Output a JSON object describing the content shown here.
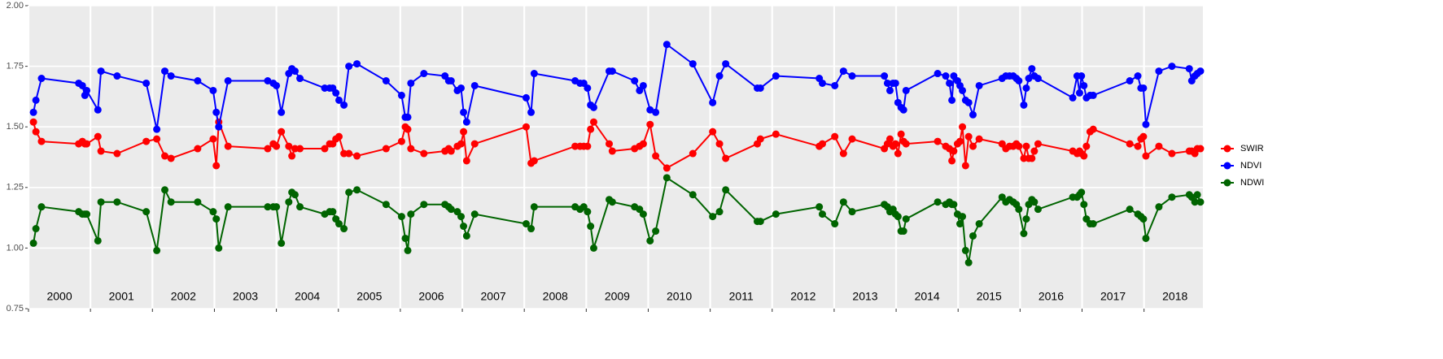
{
  "chart_data": {
    "type": "line",
    "x": [
      2000.08,
      2000.12,
      2000.21,
      2000.81,
      2000.87,
      2000.91,
      2000.94,
      2001.12,
      2001.17,
      2001.43,
      2001.9,
      2002.07,
      2002.2,
      2002.3,
      2002.73,
      2002.98,
      2003.03,
      2003.07,
      2003.22,
      2003.86,
      2003.95,
      2004.0,
      2004.08,
      2004.2,
      2004.25,
      2004.3,
      2004.38,
      2004.78,
      2004.86,
      2004.91,
      2004.96,
      2005.01,
      2005.09,
      2005.17,
      2005.3,
      2005.77,
      2006.02,
      2006.08,
      2006.12,
      2006.17,
      2006.38,
      2006.72,
      2006.78,
      2006.82,
      2006.92,
      2006.98,
      2007.02,
      2007.07,
      2007.2,
      2008.03,
      2008.11,
      2008.16,
      2008.82,
      2008.9,
      2008.96,
      2009.02,
      2009.07,
      2009.12,
      2009.37,
      2009.42,
      2009.78,
      2009.86,
      2009.92,
      2010.03,
      2010.12,
      2010.3,
      2010.72,
      2011.04,
      2011.15,
      2011.25,
      2011.76,
      2011.81,
      2012.06,
      2012.76,
      2012.81,
      2013.01,
      2013.15,
      2013.29,
      2013.81,
      2013.86,
      2013.9,
      2013.95,
      2013.99,
      2014.03,
      2014.08,
      2014.12,
      2014.16,
      2014.67,
      2014.8,
      2014.86,
      2014.9,
      2014.93,
      2014.99,
      2015.03,
      2015.07,
      2015.12,
      2015.17,
      2015.24,
      2015.34,
      2015.71,
      2015.77,
      2015.83,
      2015.89,
      2015.94,
      2015.98,
      2016.06,
      2016.1,
      2016.14,
      2016.19,
      2016.23,
      2016.29,
      2016.85,
      2016.92,
      2016.96,
      2016.99,
      2017.03,
      2017.07,
      2017.13,
      2017.18,
      2017.77,
      2017.9,
      2017.95,
      2017.99,
      2018.03,
      2018.24,
      2018.45,
      2018.73,
      2018.77,
      2018.82,
      2018.86,
      2018.91
    ],
    "series": [
      {
        "name": "SWIR",
        "color": "#ff0000",
        "values": [
          1.52,
          1.48,
          1.44,
          1.43,
          1.44,
          1.43,
          1.43,
          1.46,
          1.4,
          1.39,
          1.44,
          1.45,
          1.38,
          1.37,
          1.41,
          1.45,
          1.34,
          1.52,
          1.42,
          1.41,
          1.43,
          1.42,
          1.48,
          1.42,
          1.38,
          1.41,
          1.41,
          1.41,
          1.43,
          1.43,
          1.45,
          1.46,
          1.39,
          1.39,
          1.38,
          1.41,
          1.44,
          1.5,
          1.49,
          1.41,
          1.39,
          1.4,
          1.41,
          1.4,
          1.42,
          1.43,
          1.48,
          1.36,
          1.43,
          1.5,
          1.35,
          1.36,
          1.42,
          1.42,
          1.42,
          1.42,
          1.49,
          1.52,
          1.43,
          1.4,
          1.41,
          1.42,
          1.43,
          1.51,
          1.38,
          1.33,
          1.39,
          1.48,
          1.43,
          1.37,
          1.43,
          1.45,
          1.47,
          1.42,
          1.43,
          1.46,
          1.39,
          1.45,
          1.41,
          1.43,
          1.45,
          1.42,
          1.43,
          1.39,
          1.47,
          1.44,
          1.43,
          1.44,
          1.42,
          1.41,
          1.36,
          1.4,
          1.43,
          1.44,
          1.5,
          1.34,
          1.46,
          1.42,
          1.45,
          1.43,
          1.41,
          1.42,
          1.42,
          1.43,
          1.42,
          1.37,
          1.42,
          1.37,
          1.37,
          1.4,
          1.43,
          1.4,
          1.39,
          1.4,
          1.39,
          1.38,
          1.42,
          1.48,
          1.49,
          1.43,
          1.42,
          1.45,
          1.46,
          1.38,
          1.42,
          1.39,
          1.4,
          1.4,
          1.39,
          1.41,
          1.41
        ]
      },
      {
        "name": "NDVI",
        "color": "#0000ff",
        "values": [
          1.56,
          1.61,
          1.7,
          1.68,
          1.67,
          1.63,
          1.65,
          1.57,
          1.73,
          1.71,
          1.68,
          1.49,
          1.73,
          1.71,
          1.69,
          1.65,
          1.56,
          1.5,
          1.69,
          1.69,
          1.68,
          1.67,
          1.56,
          1.72,
          1.74,
          1.73,
          1.7,
          1.66,
          1.66,
          1.66,
          1.64,
          1.61,
          1.59,
          1.75,
          1.76,
          1.69,
          1.63,
          1.54,
          1.54,
          1.68,
          1.72,
          1.71,
          1.69,
          1.69,
          1.65,
          1.66,
          1.56,
          1.52,
          1.67,
          1.62,
          1.56,
          1.72,
          1.69,
          1.68,
          1.68,
          1.66,
          1.59,
          1.58,
          1.73,
          1.73,
          1.69,
          1.65,
          1.67,
          1.57,
          1.56,
          1.84,
          1.76,
          1.6,
          1.71,
          1.76,
          1.66,
          1.66,
          1.71,
          1.7,
          1.68,
          1.67,
          1.73,
          1.71,
          1.71,
          1.68,
          1.65,
          1.68,
          1.68,
          1.6,
          1.58,
          1.57,
          1.65,
          1.72,
          1.71,
          1.68,
          1.61,
          1.71,
          1.69,
          1.67,
          1.65,
          1.61,
          1.6,
          1.55,
          1.67,
          1.7,
          1.71,
          1.71,
          1.71,
          1.7,
          1.69,
          1.59,
          1.66,
          1.7,
          1.74,
          1.71,
          1.7,
          1.62,
          1.71,
          1.64,
          1.71,
          1.67,
          1.62,
          1.63,
          1.63,
          1.69,
          1.71,
          1.66,
          1.66,
          1.51,
          1.73,
          1.75,
          1.74,
          1.69,
          1.71,
          1.72,
          1.73
        ]
      },
      {
        "name": "NDWI",
        "color": "#006400",
        "values": [
          1.02,
          1.08,
          1.17,
          1.15,
          1.14,
          1.14,
          1.14,
          1.03,
          1.19,
          1.19,
          1.15,
          0.99,
          1.24,
          1.19,
          1.19,
          1.15,
          1.12,
          1.0,
          1.17,
          1.17,
          1.17,
          1.17,
          1.02,
          1.19,
          1.23,
          1.22,
          1.17,
          1.14,
          1.15,
          1.15,
          1.12,
          1.1,
          1.08,
          1.23,
          1.24,
          1.18,
          1.13,
          1.04,
          0.99,
          1.14,
          1.18,
          1.18,
          1.17,
          1.16,
          1.15,
          1.13,
          1.09,
          1.05,
          1.14,
          1.1,
          1.08,
          1.17,
          1.17,
          1.16,
          1.17,
          1.15,
          1.09,
          1.0,
          1.2,
          1.19,
          1.17,
          1.16,
          1.14,
          1.03,
          1.07,
          1.29,
          1.22,
          1.13,
          1.15,
          1.24,
          1.11,
          1.11,
          1.14,
          1.17,
          1.14,
          1.1,
          1.19,
          1.15,
          1.18,
          1.17,
          1.15,
          1.16,
          1.14,
          1.13,
          1.07,
          1.07,
          1.12,
          1.19,
          1.18,
          1.19,
          1.18,
          1.18,
          1.14,
          1.1,
          1.13,
          0.99,
          0.94,
          1.05,
          1.1,
          1.21,
          1.19,
          1.2,
          1.19,
          1.18,
          1.16,
          1.06,
          1.12,
          1.18,
          1.2,
          1.19,
          1.16,
          1.21,
          1.21,
          1.22,
          1.23,
          1.18,
          1.12,
          1.1,
          1.1,
          1.16,
          1.14,
          1.13,
          1.12,
          1.04,
          1.17,
          1.21,
          1.22,
          1.21,
          1.19,
          1.22,
          1.19
        ]
      }
    ],
    "xlim": [
      2000,
      2018.95
    ],
    "xticks": [
      2000,
      2001,
      2002,
      2003,
      2004,
      2005,
      2006,
      2007,
      2008,
      2009,
      2010,
      2011,
      2012,
      2013,
      2014,
      2015,
      2016,
      2017,
      2018
    ],
    "ylim": [
      0.75,
      2.0
    ],
    "yticks": [
      {
        "value": 0.75,
        "label": "0.75"
      },
      {
        "value": 1.0,
        "label": "1.00"
      },
      {
        "value": 1.25,
        "label": "1.25"
      },
      {
        "value": 1.5,
        "label": "1.50"
      },
      {
        "value": 1.75,
        "label": "1.75"
      },
      {
        "value": 2.0,
        "label": "2.00"
      }
    ],
    "grid": true,
    "legend": "right"
  }
}
